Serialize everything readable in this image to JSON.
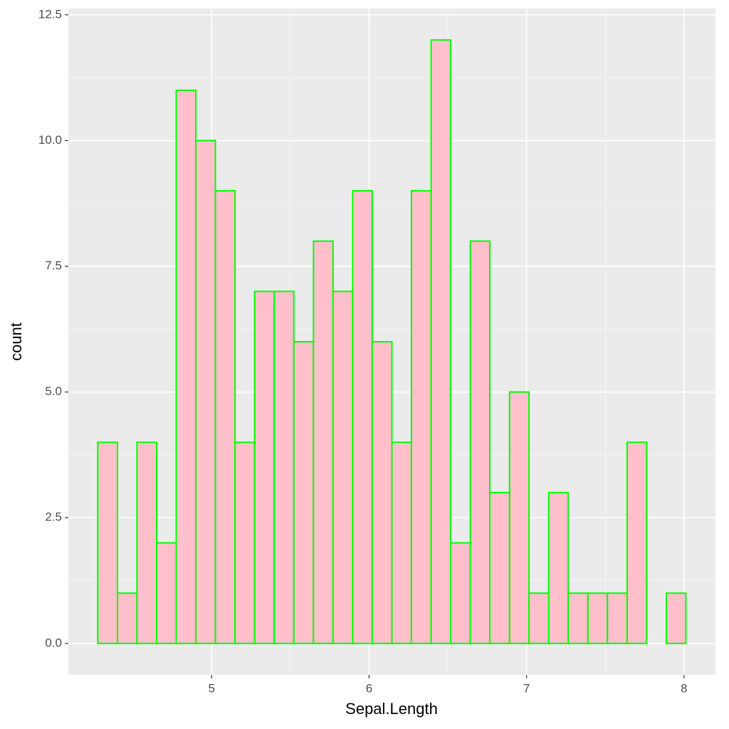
{
  "chart_data": {
    "type": "histogram",
    "x_label": "Sepal.Length",
    "y_label": "count",
    "bins": [
      4.277,
      4.402,
      4.526,
      4.651,
      4.775,
      4.9,
      5.024,
      5.149,
      5.273,
      5.398,
      5.522,
      5.647,
      5.771,
      5.896,
      6.02,
      6.145,
      6.269,
      6.394,
      6.518,
      6.643,
      6.767,
      6.892,
      7.016,
      7.141,
      7.265,
      7.39,
      7.514,
      7.639,
      7.763,
      7.888,
      8.012
    ],
    "values": [
      4,
      1,
      4,
      2,
      11,
      10,
      9,
      4,
      7,
      7,
      6,
      8,
      7,
      9,
      6,
      4,
      9,
      12,
      2,
      8,
      3,
      5,
      1,
      3,
      1,
      1,
      1,
      4,
      0,
      1
    ],
    "color": "#ffc0cb",
    "edge_color": "#00ff00",
    "xlim": [
      4.09,
      8.2
    ],
    "xticks": [
      5,
      6,
      7,
      8
    ],
    "ylim": [
      -0.625,
      12.625
    ],
    "yticks": [
      {
        "value": 0,
        "label": "0.0"
      },
      2.5,
      {
        "value": 5,
        "label": "5.0"
      },
      7.5,
      {
        "value": 10,
        "label": "10.0"
      },
      12.5
    ],
    "grid": true
  }
}
